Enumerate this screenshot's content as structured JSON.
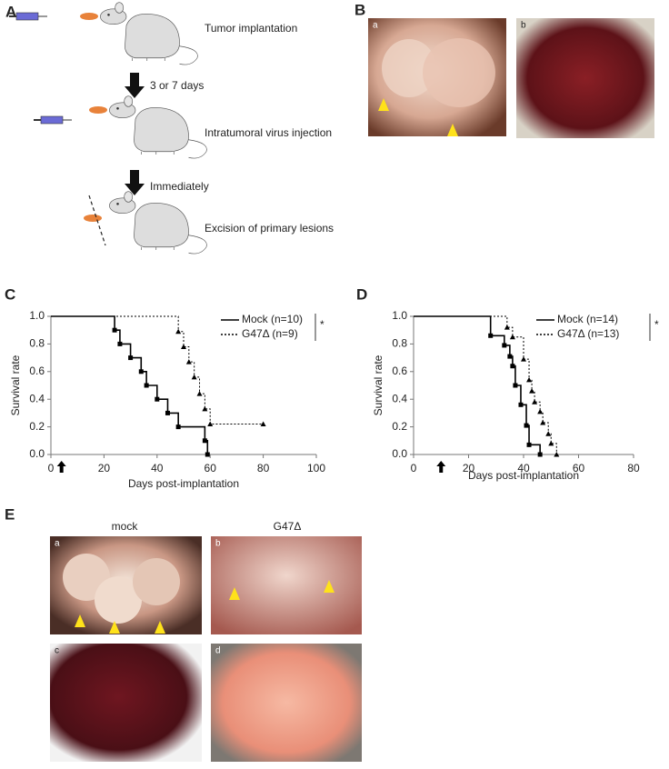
{
  "panels": {
    "A": {
      "label": "A",
      "steps": [
        "Tumor implantation",
        "3 or 7 days",
        "Intratumoral virus injection",
        "Immediately",
        "Excision of primary lesions"
      ]
    },
    "B": {
      "label": "B",
      "images": [
        "a",
        "b"
      ]
    },
    "E": {
      "label": "E",
      "columns": [
        "mock",
        "G47Δ"
      ],
      "images": [
        "a",
        "b",
        "c",
        "d"
      ]
    }
  },
  "chart_data": [
    {
      "type": "line",
      "step": true,
      "panel_label": "C",
      "xlabel": "Days post-implantation",
      "ylabel": "Survival rate",
      "xlim": [
        0,
        100
      ],
      "xticks": [
        0,
        20,
        40,
        60,
        80,
        100
      ],
      "ylim": [
        0,
        1
      ],
      "yticks": [
        {
          "value": 0,
          "label": "0.0"
        },
        {
          "value": 0.2,
          "label": "0.2"
        },
        {
          "value": 0.4,
          "label": "0.4"
        },
        {
          "value": 0.6,
          "label": "0.6"
        },
        {
          "value": 0.8,
          "label": "0.8"
        },
        {
          "value": 1,
          "label": "1.0"
        }
      ],
      "injection_day": 4,
      "significance": "*",
      "series": [
        {
          "name": "Mock (n=10)",
          "style": "solid",
          "marker": "square",
          "color": "#000000",
          "x": [
            0,
            24,
            26,
            30,
            34,
            36,
            40,
            44,
            48,
            58,
            59
          ],
          "values": [
            1,
            0.9,
            0.8,
            0.7,
            0.6,
            0.5,
            0.4,
            0.3,
            0.2,
            0.1,
            0
          ]
        },
        {
          "name": "G47Δ (n=9)",
          "style": "dotted",
          "marker": "triangle",
          "color": "#000000",
          "x": [
            0,
            48,
            50,
            52,
            54,
            56,
            58,
            60,
            80
          ],
          "values": [
            1,
            0.89,
            0.78,
            0.67,
            0.56,
            0.44,
            0.33,
            0.22,
            0.22
          ]
        }
      ]
    },
    {
      "type": "line",
      "step": true,
      "panel_label": "D",
      "xlabel": "Days post-implantation",
      "ylabel": "Survival rate",
      "xlim": [
        0,
        80
      ],
      "xticks": [
        0,
        20,
        40,
        60,
        80
      ],
      "ylim": [
        0,
        1
      ],
      "yticks": [
        {
          "value": 0,
          "label": "0.0"
        },
        {
          "value": 0.2,
          "label": "0.2"
        },
        {
          "value": 0.4,
          "label": "0.4"
        },
        {
          "value": 0.6,
          "label": "0.6"
        },
        {
          "value": 0.8,
          "label": "0.8"
        },
        {
          "value": 1,
          "label": "1.0"
        }
      ],
      "injection_day": 10,
      "significance": "*",
      "series": [
        {
          "name": "Mock (n=14)",
          "style": "solid",
          "marker": "square",
          "color": "#000000",
          "x": [
            0,
            28,
            33,
            35,
            36,
            37,
            39,
            41,
            42,
            46
          ],
          "values": [
            1,
            0.86,
            0.79,
            0.71,
            0.64,
            0.5,
            0.36,
            0.21,
            0.07,
            0
          ]
        },
        {
          "name": "G47Δ (n=13)",
          "style": "dotted",
          "marker": "triangle",
          "color": "#000000",
          "x": [
            0,
            34,
            36,
            40,
            42,
            43,
            44,
            46,
            47,
            49,
            50,
            52
          ],
          "values": [
            1,
            0.92,
            0.85,
            0.69,
            0.54,
            0.46,
            0.38,
            0.31,
            0.23,
            0.15,
            0.08,
            0
          ]
        }
      ]
    }
  ]
}
